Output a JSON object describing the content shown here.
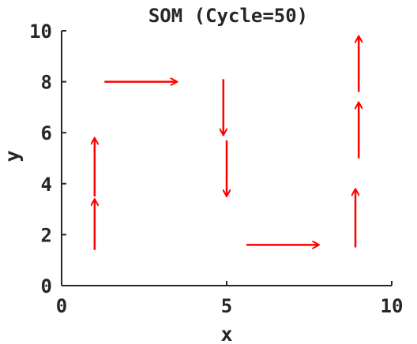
{
  "chart_data": {
    "type": "quiver",
    "title": "SOM (Cycle=50)",
    "xlabel": "x",
    "ylabel": "y",
    "xlim": [
      0,
      10
    ],
    "ylim": [
      0,
      10
    ],
    "xticks": [
      0,
      5,
      10
    ],
    "yticks": [
      0,
      2,
      4,
      6,
      8,
      10
    ],
    "grid": false,
    "arrow_color": "#ff0000",
    "axis_color": "#262626",
    "arrows": [
      {
        "x": 1.0,
        "y": 1.4,
        "dx": 0.0,
        "dy": 2.0
      },
      {
        "x": 1.0,
        "y": 3.5,
        "dx": 0.0,
        "dy": 2.3
      },
      {
        "x": 1.3,
        "y": 8.0,
        "dx": 2.2,
        "dy": 0.0
      },
      {
        "x": 4.9,
        "y": 8.1,
        "dx": 0.0,
        "dy": -2.2
      },
      {
        "x": 5.0,
        "y": 5.7,
        "dx": 0.0,
        "dy": -2.2
      },
      {
        "x": 5.6,
        "y": 1.6,
        "dx": 2.2,
        "dy": 0.0
      },
      {
        "x": 8.9,
        "y": 1.5,
        "dx": 0.0,
        "dy": 2.3
      },
      {
        "x": 9.0,
        "y": 5.0,
        "dx": 0.0,
        "dy": 2.2
      },
      {
        "x": 9.0,
        "y": 7.6,
        "dx": 0.0,
        "dy": 2.2
      }
    ]
  }
}
